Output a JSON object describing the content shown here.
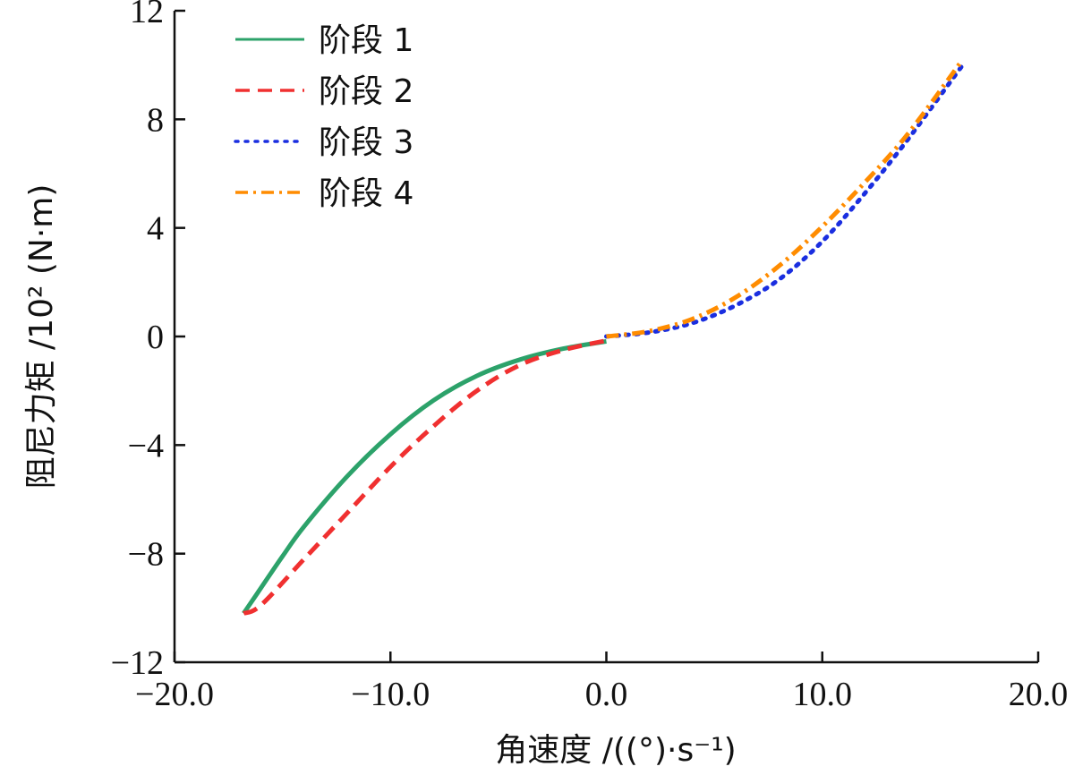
{
  "chart_data": {
    "type": "line",
    "xlabel": "角速度 /((°)·s⁻¹)",
    "ylabel": "阻尼力矩 /10² (N·m)",
    "xlim": [
      -20,
      20
    ],
    "ylim": [
      -12,
      12
    ],
    "xticks": [
      -20,
      -10,
      0,
      10,
      20
    ],
    "xtick_labels": [
      "−20.0",
      "−10.0",
      "0.0",
      "10.0",
      "20.0"
    ],
    "yticks": [
      -12,
      -8,
      -4,
      0,
      4,
      8,
      12
    ],
    "ytick_labels": [
      "−12",
      "−8",
      "−4",
      "0",
      "4",
      "8",
      "12"
    ],
    "legend_position": "top-left",
    "series": [
      {
        "name": "阶段 1",
        "color": "#2ca26a",
        "style": "solid",
        "x": [
          -16.8,
          -16.2,
          -15,
          -14,
          -12,
          -10,
          -8,
          -6,
          -4,
          -2,
          0
        ],
        "y": [
          -10.2,
          -9.5,
          -8.1,
          -7.0,
          -5.15,
          -3.6,
          -2.35,
          -1.45,
          -0.85,
          -0.45,
          -0.18
        ]
      },
      {
        "name": "阶段 2",
        "color": "#f03030",
        "style": "dashed",
        "x": [
          -16.8,
          -16,
          -14,
          -12,
          -10,
          -8,
          -6,
          -4,
          -2,
          0
        ],
        "y": [
          -10.2,
          -9.9,
          -8.2,
          -6.5,
          -4.8,
          -3.3,
          -2.0,
          -1.05,
          -0.5,
          -0.15
        ]
      },
      {
        "name": "阶段 3",
        "color": "#1a2ee0",
        "style": "dotted",
        "x": [
          0,
          2,
          4,
          6,
          8,
          10,
          12,
          14,
          16.5
        ],
        "y": [
          0,
          0.15,
          0.5,
          1.15,
          2.1,
          3.5,
          5.3,
          7.3,
          10.0
        ]
      },
      {
        "name": "阶段 4",
        "color": "#ff8c00",
        "style": "dashdot",
        "x": [
          0,
          2,
          4,
          6,
          8,
          10,
          12,
          14,
          16.5
        ],
        "y": [
          0,
          0.2,
          0.65,
          1.45,
          2.6,
          4.05,
          5.7,
          7.5,
          10.2
        ]
      }
    ]
  }
}
